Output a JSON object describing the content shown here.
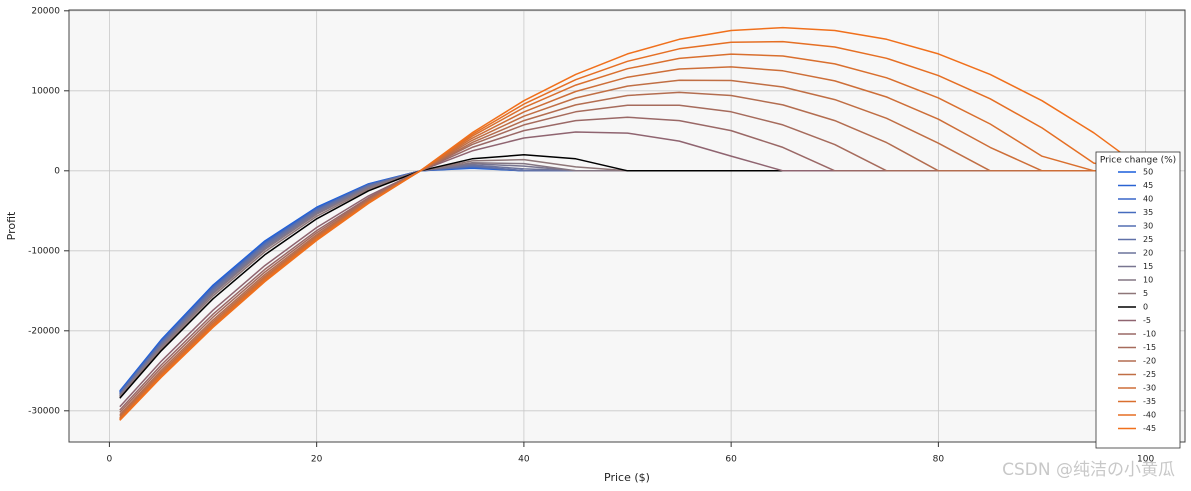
{
  "chart_data": {
    "type": "line",
    "x_label": "Price ($)",
    "y_label": "Profit",
    "legend_title": "Price change (%)",
    "legend_position": "right",
    "watermark": "CSDN @纯洁の小黄瓜",
    "xlim": [
      -3.9,
      103.8
    ],
    "ylim": [
      -33900,
      20100
    ],
    "xticks": [
      0,
      20,
      40,
      60,
      80,
      100
    ],
    "yticks": [
      -30000,
      -20000,
      -10000,
      0,
      10000,
      20000
    ],
    "grid": true,
    "x": [
      1,
      5,
      10,
      15,
      20,
      25,
      30,
      35,
      40,
      45,
      50,
      55,
      60,
      65,
      70,
      75,
      80,
      85,
      90,
      95,
      100
    ],
    "series": [
      {
        "name": "50",
        "color": "#1a5fdc",
        "values": [
          -27521,
          -21125,
          -14300,
          -8775,
          -4550,
          -1625,
          0,
          325,
          0,
          0,
          0,
          0,
          0,
          0,
          0,
          0,
          0,
          0,
          0,
          0,
          0
        ]
      },
      {
        "name": "45",
        "color": "#2a63d2",
        "values": [
          -27619,
          -21236,
          -14414,
          -8880,
          -4633,
          -1673,
          0,
          386,
          0,
          0,
          0,
          0,
          0,
          0,
          0,
          0,
          0,
          0,
          0,
          0,
          0
        ]
      },
      {
        "name": "40",
        "color": "#3867c8",
        "values": [
          -27677,
          -21314,
          -14507,
          -8971,
          -4708,
          -1718,
          0,
          445,
          0,
          0,
          0,
          0,
          0,
          0,
          0,
          0,
          0,
          0,
          0,
          0,
          0
        ]
      },
      {
        "name": "35",
        "color": "#466bbe",
        "values": [
          -27781,
          -21429,
          -14622,
          -9076,
          -4790,
          -1765,
          0,
          504,
          0,
          0,
          0,
          0,
          0,
          0,
          0,
          0,
          0,
          0,
          0,
          0,
          0
        ]
      },
      {
        "name": "30",
        "color": "#536eb2",
        "values": [
          -27846,
          -21511,
          -14715,
          -9165,
          -4863,
          -1808,
          0,
          561,
          0,
          0,
          0,
          0,
          0,
          0,
          0,
          0,
          0,
          0,
          0,
          0,
          0
        ]
      },
      {
        "name": "25",
        "color": "#6071a8",
        "values": [
          -27936,
          -21613,
          -14820,
          -9263,
          -4940,
          -1853,
          0,
          618,
          0,
          0,
          0,
          0,
          0,
          0,
          0,
          0,
          0,
          0,
          0,
          0,
          0
        ]
      },
      {
        "name": "20",
        "color": "#6c739c",
        "values": [
          -28014,
          -21735,
          -14973,
          -9419,
          -5072,
          -1932,
          0,
          725,
          242,
          0,
          0,
          0,
          0,
          0,
          0,
          0,
          0,
          0,
          0,
          0,
          0
        ]
      },
      {
        "name": "15",
        "color": "#787590",
        "values": [
          -28114,
          -21900,
          -15184,
          -9636,
          -5256,
          -2044,
          0,
          876,
          584,
          0,
          0,
          0,
          0,
          0,
          0,
          0,
          0,
          0,
          0,
          0,
          0
        ]
      },
      {
        "name": "10",
        "color": "#847683",
        "values": [
          -28195,
          -22045,
          -15375,
          -9835,
          -5426,
          -2148,
          0,
          1017,
          904,
          0,
          0,
          0,
          0,
          0,
          0,
          0,
          0,
          0,
          0,
          0,
          0
        ]
      },
      {
        "name": "5",
        "color": "#8e7678",
        "values": [
          -28290,
          -22244,
          -15651,
          -10130,
          -5682,
          -2305,
          0,
          1233,
          1394,
          482,
          0,
          0,
          0,
          0,
          0,
          0,
          0,
          0,
          0,
          0,
          0
        ]
      },
      {
        "name": "0",
        "color": "#000000",
        "values": [
          -28420,
          -22500,
          -16000,
          -10500,
          -6000,
          -2500,
          0,
          1500,
          2000,
          1500,
          0,
          0,
          0,
          0,
          0,
          0,
          0,
          0,
          0,
          0,
          0
        ]
      },
      {
        "name": "-5",
        "color": "#8f6470",
        "values": [
          -29500,
          -23810,
          -17420,
          -11844,
          -7082,
          -3134,
          0,
          2488,
          4103,
          4845,
          4714,
          3710,
          1833,
          0,
          0,
          0,
          0,
          0,
          0,
          0,
          0
        ]
      },
      {
        "name": "-10",
        "color": "#9a6866",
        "values": [
          -29900,
          -24278,
          -17928,
          -12326,
          -7470,
          -3362,
          0,
          2931,
          5025,
          6281,
          6700,
          6281,
          5025,
          2931,
          0,
          0,
          0,
          0,
          0,
          0,
          0
        ]
      },
      {
        "name": "-15",
        "color": "#a66b5c",
        "values": [
          -30200,
          -24623,
          -18291,
          -12663,
          -7739,
          -3518,
          0,
          3280,
          5740,
          7380,
          8200,
          8200,
          7380,
          5740,
          3280,
          0,
          0,
          0,
          0,
          0,
          0
        ]
      },
      {
        "name": "-20",
        "color": "#b36d50",
        "values": [
          -30500,
          -24956,
          -18634,
          -12977,
          -7986,
          -3660,
          0,
          3528,
          6272,
          8232,
          9408,
          9800,
          9408,
          8232,
          6272,
          3528,
          0,
          0,
          0,
          0,
          0
        ]
      },
      {
        "name": "-25",
        "color": "#c06e44",
        "values": [
          -30700,
          -25202,
          -18893,
          -13219,
          -8179,
          -3772,
          0,
          3799,
          6831,
          9095,
          10592,
          11321,
          11282,
          10476,
          8903,
          6562,
          3454,
          0,
          0,
          0,
          0
        ]
      },
      {
        "name": "-30",
        "color": "#cd6e38",
        "values": [
          -30900,
          -25426,
          -19123,
          -13428,
          -8343,
          -3867,
          0,
          4063,
          7367,
          9911,
          11696,
          12722,
          12987,
          12494,
          11241,
          9228,
          6456,
          2924,
          0,
          0,
          0
        ]
      },
      {
        "name": "-35",
        "color": "#d96f2e",
        "values": [
          -31000,
          -25556,
          -19270,
          -13571,
          -8460,
          -3936,
          0,
          4329,
          7899,
          10709,
          12760,
          14051,
          14582,
          14355,
          13367,
          11620,
          9114,
          5848,
          1823,
          0,
          0
        ]
      },
      {
        "name": "-40",
        "color": "#e56f24",
        "values": [
          -31100,
          -25685,
          -19419,
          -13717,
          -8580,
          -4008,
          0,
          4538,
          8333,
          11383,
          13690,
          15252,
          16070,
          16145,
          15475,
          14062,
          11904,
          9002,
          5357,
          967,
          0
        ]
      },
      {
        "name": "-45",
        "color": "#f0701c",
        "values": [
          -31200,
          -25816,
          -19566,
          -13859,
          -8696,
          -4076,
          0,
          4748,
          8766,
          12053,
          14610,
          16436,
          17532,
          17897,
          17532,
          16436,
          14610,
          12053,
          8766,
          4748,
          0
        ]
      }
    ]
  }
}
